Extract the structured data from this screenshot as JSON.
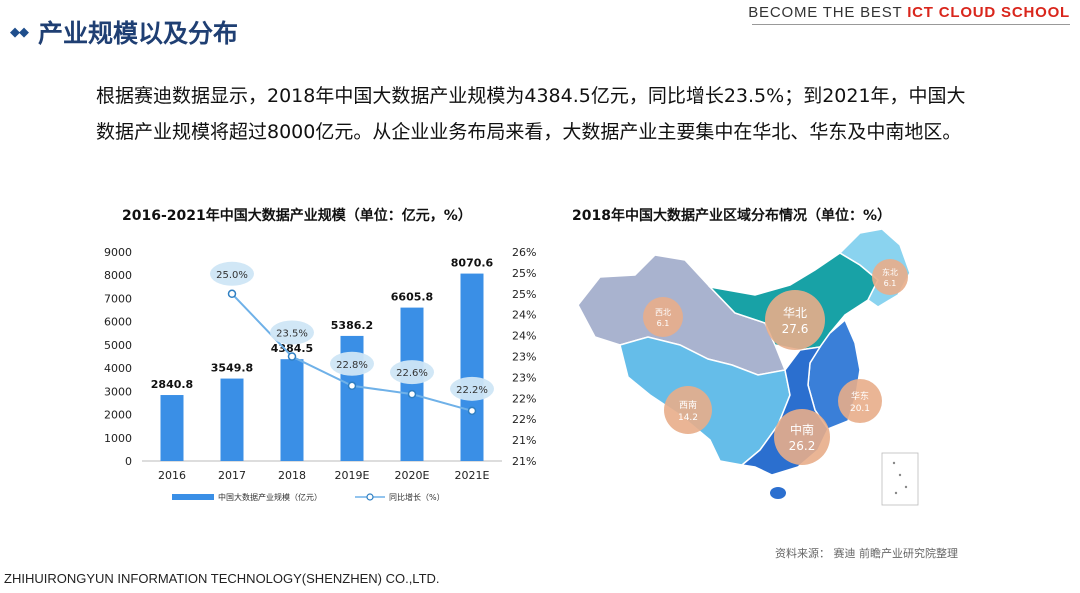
{
  "header": {
    "title": "产业规模以及分布",
    "brand_prefix": "BECOME THE BEST ",
    "brand_accent": "ICT CLOUD SCHOOL"
  },
  "intro": {
    "text": "根据赛迪数据显示，2018年中国大数据产业规模为4384.5亿元，同比增长23.5%；到2021年，中国大数据产业规模将超过8000亿元。从企业业务布局来看，大数据产业主要集中在华北、华东及中南地区。"
  },
  "chart_data": [
    {
      "type": "bar",
      "title": "2016-2021年中国大数据产业规模（单位：亿元，%）",
      "categories": [
        "2016",
        "2017",
        "2018",
        "2019E",
        "2020E",
        "2021E"
      ],
      "series": [
        {
          "name": "中国大数据产业规模（亿元）",
          "values": [
            2840.8,
            3549.8,
            4384.5,
            5386.2,
            6605.8,
            8070.6
          ],
          "labels": [
            "2840.8",
            "3549.8",
            "4384.5",
            "5386.2",
            "6605.8",
            "8070.6"
          ]
        },
        {
          "name": "同比增长（%）",
          "type": "line",
          "values": [
            null,
            25.0,
            23.5,
            22.8,
            22.6,
            22.2
          ],
          "labels": [
            "",
            "25.0%",
            "23.5%",
            "22.8%",
            "22.6%",
            "22.2%"
          ]
        }
      ],
      "yticks_left": [
        "0",
        "1000",
        "2000",
        "3000",
        "4000",
        "5000",
        "6000",
        "7000",
        "8000",
        "9000"
      ],
      "yticks_right": [
        "21%",
        "21%",
        "22%",
        "22%",
        "23%",
        "23%",
        "24%",
        "24%",
        "25%",
        "25%",
        "26%"
      ],
      "ylim": [
        0,
        9000
      ],
      "ylim_right": [
        21,
        26
      ],
      "grid": false,
      "legend": "bottom"
    },
    {
      "type": "map",
      "title": "2018年中国大数据产业区域分布情况（单位：%）",
      "regions": [
        {
          "name": "华北",
          "value": "27.6"
        },
        {
          "name": "中南",
          "value": "26.2"
        },
        {
          "name": "华东",
          "value": "20.1"
        },
        {
          "name": "西南",
          "value": "14.2"
        },
        {
          "name": "西北",
          "value": "6.1"
        },
        {
          "name": "东北",
          "value": "6.1"
        }
      ]
    }
  ],
  "colors": {
    "bar": "#3a8fe6",
    "line": "#6fb1e8",
    "bubble": "#e8ad8a",
    "title": "#1f3f73",
    "accent": "#d9261c"
  },
  "source": "资料来源：   赛迪 前瞻产业研究院整理",
  "footer": "ZHIHUIRONGYUN INFORMATION TECHNOLOGY(SHENZHEN) CO.,LTD."
}
